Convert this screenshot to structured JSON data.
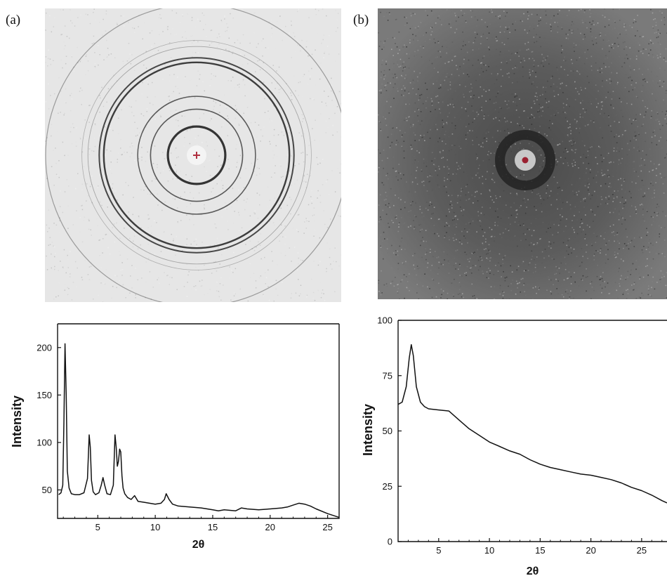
{
  "panels": {
    "a_label": "(a)",
    "b_label": "(b)"
  },
  "patterns": {
    "a": {
      "background": "#e6e6e6",
      "ring_color": "#2a2a2a",
      "beam_stop_color": "#f4f4f4",
      "center_mark_color": "#b03040",
      "rings": [
        {
          "r": 0.19,
          "width": 3.2,
          "opacity": 0.95
        },
        {
          "r": 0.39,
          "width": 1.5,
          "opacity": 0.75
        },
        {
          "r": 0.305,
          "width": 1.6,
          "opacity": 0.75
        },
        {
          "r": 0.615,
          "width": 2.4,
          "opacity": 0.9
        },
        {
          "r": 0.645,
          "width": 2.0,
          "opacity": 0.85
        },
        {
          "r": 0.72,
          "width": 0.9,
          "opacity": 0.35
        },
        {
          "r": 0.76,
          "width": 0.8,
          "opacity": 0.3
        },
        {
          "r": 1.0,
          "width": 1.2,
          "opacity": 0.4
        }
      ]
    },
    "b": {
      "background": "#707070",
      "halo_color": "#4a4a4a",
      "ring_color": "#222222",
      "beam_stop_color": "#c8c8c8",
      "center_mark_color": "#9a2030"
    }
  },
  "chart_data": [
    {
      "type": "line",
      "panel": "a",
      "xlabel": "2θ",
      "ylabel": "Intensity",
      "xlim": [
        1.5,
        26
      ],
      "ylim": [
        20,
        225
      ],
      "xticks": [
        5,
        10,
        15,
        20,
        25
      ],
      "yticks": [
        50,
        100,
        150,
        200
      ],
      "series": [
        {
          "x": [
            1.6,
            1.8,
            1.95,
            2.05,
            2.15,
            2.25,
            2.35,
            2.5,
            2.7,
            3.0,
            3.4,
            3.8,
            4.1,
            4.25,
            4.35,
            4.45,
            4.6,
            4.8,
            5.1,
            5.3,
            5.45,
            5.6,
            5.8,
            6.1,
            6.35,
            6.5,
            6.6,
            6.7,
            6.8,
            6.9,
            7.0,
            7.1,
            7.2,
            7.35,
            7.6,
            7.9,
            8.2,
            8.5,
            9.0,
            9.5,
            10.0,
            10.5,
            10.8,
            10.95,
            11.2,
            11.5,
            12,
            13,
            14,
            15,
            15.5,
            16,
            17,
            17.5,
            18,
            19,
            20,
            21,
            21.5,
            22,
            22.5,
            23,
            23.5,
            24,
            25,
            26
          ],
          "y": [
            45,
            47,
            55,
            120,
            204,
            150,
            70,
            52,
            46,
            45,
            45,
            47,
            62,
            108,
            95,
            60,
            48,
            45,
            47,
            55,
            63,
            55,
            46,
            45,
            55,
            108,
            95,
            75,
            80,
            93,
            90,
            65,
            52,
            46,
            42,
            40,
            44,
            38,
            37,
            36,
            35,
            36,
            40,
            46,
            40,
            35,
            33,
            32,
            31,
            29,
            28,
            29,
            28,
            31,
            30,
            29,
            30,
            31,
            32,
            34,
            36,
            35,
            33,
            30,
            25,
            21
          ]
        }
      ]
    },
    {
      "type": "line",
      "panel": "b",
      "xlabel": "2θ",
      "ylabel": "Intensity",
      "xlim": [
        1,
        27.5
      ],
      "ylim": [
        0,
        100
      ],
      "xticks": [
        5,
        10,
        15,
        20,
        25
      ],
      "yticks": [
        0,
        25,
        50,
        75,
        100
      ],
      "series": [
        {
          "x": [
            1.0,
            1.4,
            1.8,
            2.1,
            2.3,
            2.5,
            2.8,
            3.2,
            3.6,
            4.0,
            5.0,
            6.0,
            7.0,
            8.0,
            9.0,
            10.0,
            11.0,
            12.0,
            13.0,
            14.0,
            15.0,
            16.0,
            17.0,
            18.0,
            19.0,
            20.0,
            21.0,
            22.0,
            23.0,
            24.0,
            25.0,
            26.0,
            27.0,
            27.5
          ],
          "y": [
            62,
            63,
            70,
            83,
            89,
            84,
            70,
            63,
            61,
            60,
            59.5,
            59,
            55,
            51,
            48,
            45,
            43,
            41,
            39.5,
            37,
            35,
            33.5,
            32.5,
            31.5,
            30.5,
            30,
            29,
            28,
            26.5,
            24.5,
            23,
            21,
            18.5,
            17.5
          ]
        }
      ]
    }
  ]
}
